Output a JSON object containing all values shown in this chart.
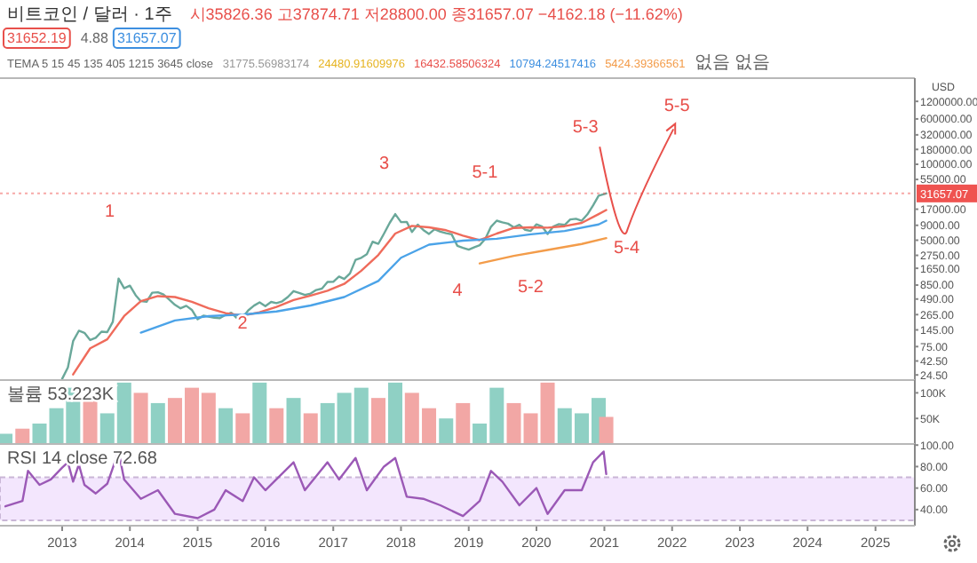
{
  "chart_data": [
    {
      "type": "line",
      "title": "비트코인 / 달러 · 1주",
      "ylabel": "USD",
      "log": "y",
      "tick_labels": "y",
      "xlim": [
        "2012-02",
        "2025-08"
      ],
      "ylim": [
        20,
        3000000
      ],
      "yticks": [
        {
          "value": 24.5,
          "label": "24.50"
        },
        {
          "value": 42.5,
          "label": "42.50"
        },
        {
          "value": 75,
          "label": "75.00"
        },
        {
          "value": 145,
          "label": "145.00"
        },
        {
          "value": 265,
          "label": "265.00"
        },
        {
          "value": 490,
          "label": "490.00"
        },
        {
          "value": 850,
          "label": "850.00"
        },
        {
          "value": 1650,
          "label": "1650.00"
        },
        {
          "value": 2750,
          "label": "2750.00"
        },
        {
          "value": 5000,
          "label": "5000.00"
        },
        {
          "value": 9000,
          "label": "9000.00"
        },
        {
          "value": 17000,
          "label": "17000.00"
        },
        {
          "value": 55000,
          "label": "55000.00"
        },
        {
          "value": 100000,
          "label": "100000.00"
        },
        {
          "value": 180000,
          "label": "180000.00"
        },
        {
          "value": 320000,
          "label": "320000.00"
        },
        {
          "value": 600000,
          "label": "600000.00"
        },
        {
          "value": 1200000,
          "label": "1200000.00"
        }
      ],
      "series": [
        {
          "color": "#6aa89a",
          "x": [
            "2013-01",
            "2013-02",
            "2013-03",
            "2013-04",
            "2013-05",
            "2013-06",
            "2013-07",
            "2013-08",
            "2013-09",
            "2013-10",
            "2013-11",
            "2013-12",
            "2014-01",
            "2014-02",
            "2014-03",
            "2014-04",
            "2014-05",
            "2014-06",
            "2014-07",
            "2014-08",
            "2014-09",
            "2014-10",
            "2014-11",
            "2014-12",
            "2015-01",
            "2015-02",
            "2015-03",
            "2015-04",
            "2015-05",
            "2015-06",
            "2015-07",
            "2015-08",
            "2015-09",
            "2015-10",
            "2015-11",
            "2015-12",
            "2016-01",
            "2016-02",
            "2016-03",
            "2016-04",
            "2016-05",
            "2016-06",
            "2016-07",
            "2016-08",
            "2016-09",
            "2016-10",
            "2016-11",
            "2016-12",
            "2017-01",
            "2017-02",
            "2017-03",
            "2017-04",
            "2017-05",
            "2017-06",
            "2017-07",
            "2017-08",
            "2017-09",
            "2017-10",
            "2017-11",
            "2017-12",
            "2018-01",
            "2018-02",
            "2018-03",
            "2018-04",
            "2018-05",
            "2018-06",
            "2018-07",
            "2018-08",
            "2018-09",
            "2018-10",
            "2018-11",
            "2018-12",
            "2019-01",
            "2019-02",
            "2019-03",
            "2019-04",
            "2019-05",
            "2019-06",
            "2019-07",
            "2019-08",
            "2019-09",
            "2019-10",
            "2019-11",
            "2019-12",
            "2020-01",
            "2020-02",
            "2020-03",
            "2020-04",
            "2020-05",
            "2020-06",
            "2020-07",
            "2020-08",
            "2020-09",
            "2020-10",
            "2020-11",
            "2020-12",
            "2021-01-11"
          ],
          "values": [
            21,
            33,
            93,
            140,
            129,
            97,
            106,
            135,
            133,
            200,
            1100,
            750,
            830,
            570,
            450,
            440,
            630,
            640,
            585,
            480,
            390,
            340,
            375,
            320,
            220,
            255,
            245,
            235,
            230,
            263,
            285,
            230,
            236,
            314,
            378,
            430,
            370,
            437,
            416,
            448,
            530,
            670,
            624,
            575,
            608,
            700,
            740,
            960,
            970,
            1190,
            1080,
            1350,
            2300,
            2500,
            2870,
            4700,
            4340,
            6450,
            9900,
            14000,
            10200,
            10300,
            6900,
            9240,
            7490,
            6400,
            7730,
            7000,
            6600,
            6300,
            4000,
            3700,
            3450,
            3800,
            4100,
            5300,
            8500,
            10800,
            10100,
            9600,
            8300,
            9200,
            7550,
            7200,
            9350,
            8550,
            6400,
            8600,
            9450,
            9140,
            11350,
            11650,
            10780,
            13800,
            19700,
            29000,
            31657.07
          ]
        },
        {
          "color": "#ef6b5b",
          "x": [
            "2013-03",
            "2013-06",
            "2013-09",
            "2013-12",
            "2014-03",
            "2014-06",
            "2014-09",
            "2014-12",
            "2015-03",
            "2015-06",
            "2015-09",
            "2015-12",
            "2016-03",
            "2016-06",
            "2016-09",
            "2016-12",
            "2017-03",
            "2017-06",
            "2017-09",
            "2017-12",
            "2018-03",
            "2018-06",
            "2018-09",
            "2018-12",
            "2019-03",
            "2019-06",
            "2019-09",
            "2019-12",
            "2020-03",
            "2020-06",
            "2020-09",
            "2020-12",
            "2021-01-11"
          ],
          "values": [
            25,
            70,
            100,
            250,
            450,
            550,
            530,
            440,
            340,
            280,
            255,
            290,
            360,
            470,
            560,
            680,
            890,
            1500,
            2800,
            6500,
            8800,
            8300,
            7400,
            6000,
            5000,
            6500,
            8100,
            8300,
            8200,
            8700,
            9900,
            14000,
            16432.59
          ]
        },
        {
          "color": "#4ba3e8",
          "x": [
            "2014-03",
            "2014-09",
            "2015-03",
            "2015-09",
            "2016-03",
            "2016-09",
            "2017-03",
            "2017-09",
            "2018-01",
            "2018-06",
            "2018-12",
            "2019-06",
            "2019-12",
            "2020-06",
            "2020-12",
            "2021-01-11"
          ],
          "values": [
            130,
            210,
            250,
            265,
            300,
            380,
            530,
            1000,
            2500,
            4200,
            4900,
            5300,
            6300,
            7200,
            9300,
            10794.25
          ]
        },
        {
          "color": "#f39c4a",
          "x": [
            "2019-03",
            "2019-09",
            "2020-03",
            "2020-09",
            "2021-01-11"
          ],
          "values": [
            2000,
            2700,
            3400,
            4300,
            5424.39
          ]
        }
      ],
      "ref_lines": [
        {
          "axis": "y",
          "value": 31657.07,
          "label": "31657.07",
          "color": "#ef5350",
          "line_style": "dotted"
        }
      ],
      "annotations": [
        "시35826.36 고37874.71 저28800.00 종31657.07 −4162.18 (−11.62%)",
        "31652.19",
        "4.88",
        "31657.07",
        "TEMA 5 15 45 135 405 1215 3645 close",
        "31775.56983174",
        "24480.91609976",
        "16432.58506324",
        "10794.24517416",
        "5424.39366561",
        "없음 없음",
        "1",
        "2",
        "3",
        "4",
        "5-1",
        "5-2",
        "5-3",
        "5-4",
        "5-5"
      ]
    },
    {
      "type": "bar",
      "tick_labels": "y",
      "xlim": [
        "2012-02",
        "2025-08"
      ],
      "ylim": [
        0,
        125000
      ],
      "yticks": [
        {
          "value": 50000,
          "label": "50K"
        },
        {
          "value": 100000,
          "label": "100K"
        }
      ],
      "x": [
        "2012-03",
        "2012-06",
        "2012-09",
        "2012-12",
        "2013-03",
        "2013-06",
        "2013-09",
        "2013-12",
        "2014-03",
        "2014-06",
        "2014-09",
        "2014-12",
        "2015-03",
        "2015-06",
        "2015-09",
        "2015-12",
        "2016-03",
        "2016-06",
        "2016-09",
        "2016-12",
        "2017-03",
        "2017-06",
        "2017-09",
        "2017-12",
        "2018-03",
        "2018-06",
        "2018-09",
        "2018-12",
        "2019-03",
        "2019-06",
        "2019-09",
        "2019-12",
        "2020-03",
        "2020-06",
        "2020-09",
        "2020-12",
        "2021-01-11"
      ],
      "values": [
        20000,
        30000,
        40000,
        70000,
        110000,
        90000,
        60000,
        120000,
        100000,
        80000,
        90000,
        110000,
        100000,
        70000,
        60000,
        120000,
        70000,
        90000,
        60000,
        80000,
        100000,
        110000,
        90000,
        120000,
        100000,
        70000,
        50000,
        80000,
        40000,
        110000,
        80000,
        60000,
        120000,
        70000,
        60000,
        90000,
        53000
      ],
      "colors": [
        "#8fd0c4",
        "#f2a7a5",
        "#8fd0c4",
        "#8fd0c4",
        "#8fd0c4",
        "#f2a7a5",
        "#8fd0c4",
        "#8fd0c4",
        "#f2a7a5",
        "#8fd0c4",
        "#f2a7a5",
        "#f2a7a5",
        "#f2a7a5",
        "#8fd0c4",
        "#f2a7a5",
        "#8fd0c4",
        "#f2a7a5",
        "#8fd0c4",
        "#f2a7a5",
        "#8fd0c4",
        "#8fd0c4",
        "#8fd0c4",
        "#f2a7a5",
        "#8fd0c4",
        "#f2a7a5",
        "#f2a7a5",
        "#8fd0c4",
        "#f2a7a5",
        "#8fd0c4",
        "#8fd0c4",
        "#f2a7a5",
        "#f2a7a5",
        "#f2a7a5",
        "#8fd0c4",
        "#8fd0c4",
        "#8fd0c4",
        "#f2a7a5"
      ],
      "annotations": [
        "볼륨 53.223K"
      ]
    },
    {
      "type": "line",
      "xlim": [
        "2012-02",
        "2025-08"
      ],
      "ylim": [
        25,
        101
      ],
      "yticks": [
        {
          "value": 40,
          "label": "40.00"
        },
        {
          "value": 60,
          "label": "60.00"
        },
        {
          "value": 80,
          "label": "80.00"
        },
        {
          "value": 100,
          "label": "100.00"
        }
      ],
      "xticks": [
        {
          "value": "2013",
          "label": "2013"
        },
        {
          "value": "2014",
          "label": "2014"
        },
        {
          "value": "2015",
          "label": "2015"
        },
        {
          "value": "2016",
          "label": "2016"
        },
        {
          "value": "2017",
          "label": "2017"
        },
        {
          "value": "2018",
          "label": "2018"
        },
        {
          "value": "2019",
          "label": "2019"
        },
        {
          "value": "2020",
          "label": "2020"
        },
        {
          "value": "2021",
          "label": "2021"
        },
        {
          "value": "2022",
          "label": "2022"
        },
        {
          "value": "2023",
          "label": "2023"
        },
        {
          "value": "2024",
          "label": "2024"
        },
        {
          "value": "2025",
          "label": "2025"
        }
      ],
      "bands": [
        {
          "axis": "y",
          "from": 30,
          "to": 70,
          "color": "#f3e6fd"
        }
      ],
      "series": [
        {
          "color": "#9b59b6",
          "x": [
            "2012-03",
            "2012-06",
            "2012-07",
            "2012-09",
            "2012-11",
            "2013-01",
            "2013-02",
            "2013-03",
            "2013-04",
            "2013-05",
            "2013-07",
            "2013-09",
            "2013-11",
            "2013-12",
            "2014-03",
            "2014-06",
            "2014-09",
            "2015-01",
            "2015-04",
            "2015-06",
            "2015-09",
            "2015-11",
            "2016-01",
            "2016-06",
            "2016-08",
            "2016-12",
            "2017-02",
            "2017-05",
            "2017-07",
            "2017-10",
            "2017-12",
            "2018-02",
            "2018-05",
            "2018-08",
            "2018-12",
            "2019-03",
            "2019-05",
            "2019-07",
            "2019-10",
            "2020-01",
            "2020-03",
            "2020-06",
            "2020-09",
            "2020-11",
            "2020-12-28",
            "2021-01-11"
          ],
          "values": [
            43,
            48,
            76,
            63,
            68,
            79,
            84,
            66,
            82,
            63,
            55,
            64,
            94,
            68,
            50,
            58,
            36,
            32,
            40,
            58,
            48,
            70,
            58,
            84,
            58,
            84,
            68,
            88,
            58,
            80,
            88,
            52,
            50,
            44,
            34,
            48,
            76,
            66,
            44,
            60,
            36,
            58,
            58,
            84,
            94,
            73
          ]
        }
      ],
      "annotations": [
        "RSI 14 close 72.68"
      ]
    }
  ]
}
